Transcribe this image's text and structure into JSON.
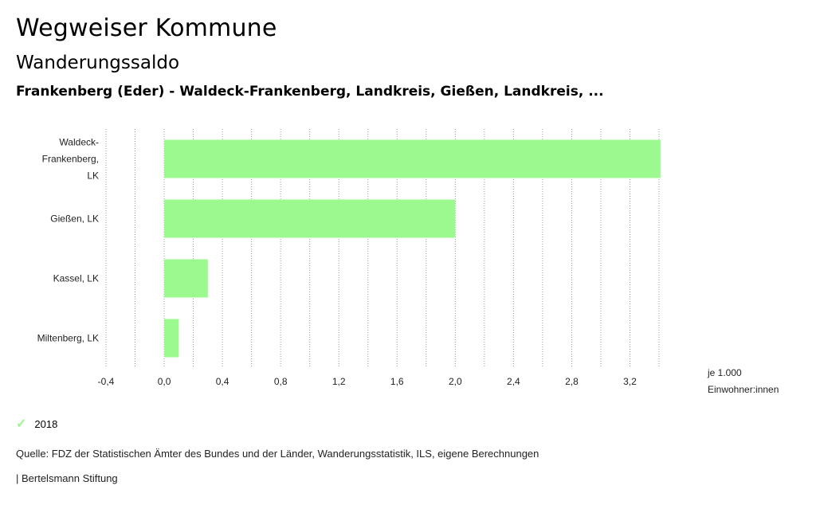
{
  "header": {
    "title": "Wegweiser Kommune",
    "subtitle": "Wanderungssaldo",
    "region": "Frankenberg (Eder) - Waldeck-Frankenberg, Landkreis, Gießen, Landkreis, ..."
  },
  "chart_data": {
    "type": "bar",
    "orientation": "horizontal",
    "categories": [
      [
        "Waldeck-",
        "Frankenberg,",
        "LK"
      ],
      [
        "Gießen, LK"
      ],
      [
        "Kassel, LK"
      ],
      [
        "Miltenberg, LK"
      ]
    ],
    "series": [
      {
        "name": "2018",
        "values": [
          3.41,
          2.0,
          0.3,
          0.1
        ],
        "color": "#9cf98f"
      }
    ],
    "xlim": [
      -0.4,
      3.4
    ],
    "xticks": [
      -0.4,
      0.0,
      0.4,
      0.8,
      1.2,
      1.6,
      2.0,
      2.4,
      2.8,
      3.2
    ],
    "xtick_labels": [
      "-0,4",
      "0,0",
      "0,4",
      "0,8",
      "1,2",
      "1,6",
      "2,0",
      "2,4",
      "2,8",
      "3,2"
    ],
    "gridlines": [
      -0.4,
      -0.2,
      0.0,
      0.2,
      0.4,
      0.6,
      0.8,
      1.0,
      1.2,
      1.4,
      1.6,
      1.8,
      2.0,
      2.2,
      2.4,
      2.6,
      2.8,
      3.0,
      3.2,
      3.4
    ],
    "unit_label": [
      "je 1.000",
      "Einwohner:innen"
    ],
    "grid": true
  },
  "legend": {
    "label": "2018",
    "color": "#9cf58f"
  },
  "footer": {
    "source": "Quelle: FDZ der Statistischen Ämter des Bundes und der Länder, Wanderungsstatistik, ILS, eigene Berechnungen",
    "credit": "| Bertelsmann Stiftung"
  }
}
